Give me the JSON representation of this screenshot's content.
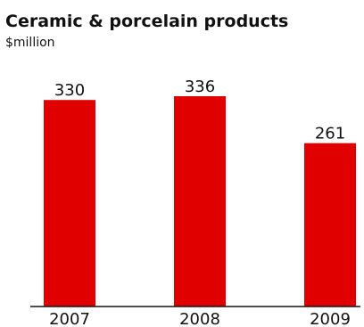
{
  "chart_data": {
    "type": "bar",
    "title": "Ceramic & porcelain products",
    "subtitle": "$million",
    "categories": [
      "2007",
      "2008",
      "2009"
    ],
    "values": [
      330,
      336,
      261
    ],
    "bar_color": "#e00000",
    "ylim": [
      0,
      336
    ],
    "grid": false,
    "legend": "none"
  }
}
